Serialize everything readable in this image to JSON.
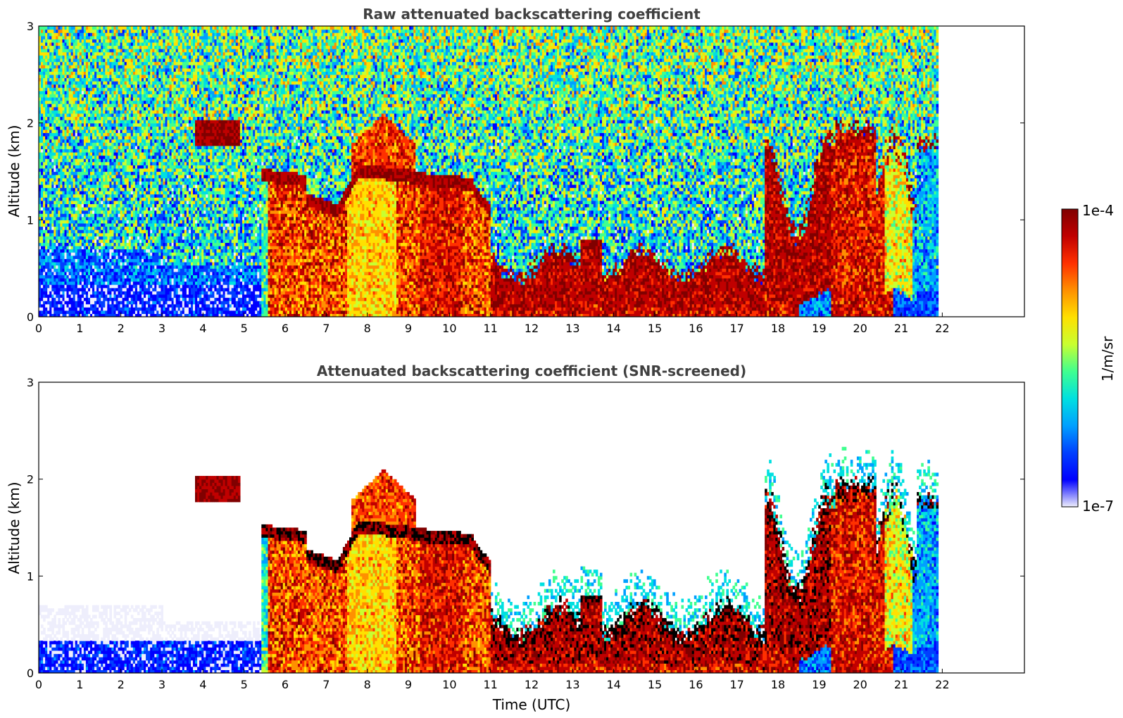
{
  "chart_data": [
    {
      "type": "heatmap",
      "title": "Raw attenuated backscattering coefficient",
      "xlabel": "",
      "ylabel": "Altitude (km)",
      "xlim": [
        0,
        24
      ],
      "ylim": [
        0,
        3
      ],
      "x_ticks": [
        "0",
        "1",
        "2",
        "3",
        "4",
        "5",
        "6",
        "7",
        "8",
        "9",
        "10",
        "11",
        "12",
        "13",
        "14",
        "15",
        "16",
        "17",
        "18",
        "19",
        "20",
        "21",
        "22"
      ],
      "y_ticks": [
        "0",
        "1",
        "2",
        "3"
      ],
      "data_extent_hours": [
        0,
        21.9
      ],
      "colormap": "jet (log scale)",
      "color_range": [
        "1e-7",
        "1e-4"
      ],
      "features": [
        {
          "kind": "clear-sky noise",
          "x": [
            0,
            22
          ],
          "y": [
            0.5,
            3
          ],
          "level": "1e-6"
        },
        {
          "kind": "boundary layer aerosol",
          "x": [
            0,
            5.4
          ],
          "y": [
            0,
            0.35
          ],
          "level": "2e-7"
        },
        {
          "kind": "cloud",
          "x": [
            3.8,
            4.8
          ],
          "y": [
            1.75,
            2.05
          ],
          "level": "1e-4"
        },
        {
          "kind": "cloud base",
          "x": [
            5.4,
            11
          ],
          "y": [
            1.0,
            1.7
          ],
          "level": "1e-4"
        },
        {
          "kind": "aerosol/precipitation",
          "x": [
            5.4,
            11
          ],
          "y": [
            0,
            1.6
          ],
          "level": "1e-5"
        },
        {
          "kind": "aerosol",
          "x": [
            7.5,
            9
          ],
          "y": [
            1.4,
            2.0
          ],
          "level": "2e-5"
        },
        {
          "kind": "low cloud",
          "x": [
            11,
            18.5
          ],
          "y": [
            0.1,
            0.8
          ],
          "level": "5e-5"
        },
        {
          "kind": "cloud",
          "x": [
            17.8,
            22
          ],
          "y": [
            0.2,
            2.0
          ],
          "level": "5e-5"
        }
      ]
    },
    {
      "type": "heatmap",
      "title": "Attenuated backscattering coefficient (SNR-screened)",
      "xlabel": "Time (UTC)",
      "ylabel": "Altitude (km)",
      "xlim": [
        0,
        24
      ],
      "ylim": [
        0,
        3
      ],
      "x_ticks": [
        "0",
        "1",
        "2",
        "3",
        "4",
        "5",
        "6",
        "7",
        "8",
        "9",
        "10",
        "11",
        "12",
        "13",
        "14",
        "15",
        "16",
        "17",
        "18",
        "19",
        "20",
        "21",
        "22"
      ],
      "y_ticks": [
        "0",
        "1",
        "2",
        "3"
      ],
      "data_extent_hours": [
        0,
        21.9
      ],
      "colormap": "jet (log scale)",
      "color_range": [
        "1e-7",
        "1e-4"
      ],
      "screened_out": "white",
      "saturated_values": "black"
    }
  ],
  "colorbar": {
    "label": "1/m/sr",
    "max_label": "1e-4",
    "min_label": "1e-7",
    "scale": "log"
  },
  "colors": {
    "jet": [
      "#eeeefc",
      "#0000ff",
      "#0040ff",
      "#00a0ff",
      "#00e0e0",
      "#40ff90",
      "#c8ff30",
      "#ffe000",
      "#ff9000",
      "#ff3000",
      "#c00000",
      "#800000"
    ],
    "saturated": "#000000",
    "title_text": "#404040"
  }
}
